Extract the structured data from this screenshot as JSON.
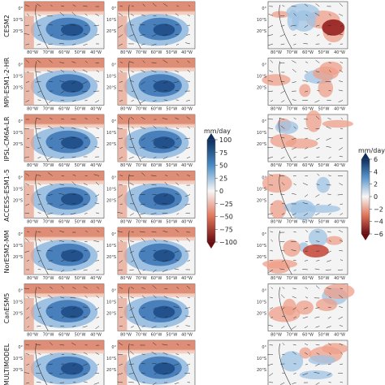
{
  "figure": {
    "models": [
      "CESM2",
      "MPI-ESM1-2-HR",
      "IPSL-CM6A-LR",
      "ACCESS-ESM1-5",
      "NorESM2-MM",
      "CanESM5",
      "MULTIMODEL"
    ],
    "lat_ticks": [
      "0°",
      "10°S",
      "20°S",
      "30°S"
    ],
    "lon_ticks": [
      "80°W",
      "70°W",
      "60°W",
      "50°W",
      "40°W"
    ],
    "colorbar_left": {
      "unit": "mm/day",
      "ticks": [
        100,
        75,
        50,
        25,
        0,
        -25,
        -50,
        -75,
        -100
      ]
    },
    "colorbar_right": {
      "unit": "mm/day",
      "ticks": [
        6,
        4,
        2,
        0,
        -2,
        -4,
        -6
      ]
    },
    "colors": {
      "wet": "#2b5f9e",
      "dry": "#c0392b",
      "neutral": "#f7f7f7"
    }
  }
}
